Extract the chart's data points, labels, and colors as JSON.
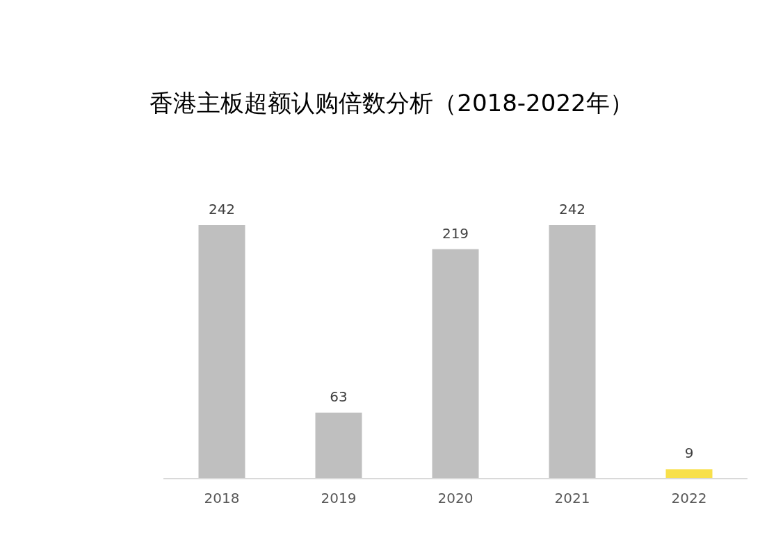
{
  "chart_data": {
    "type": "bar",
    "title": "香港主板超额认购倍数分析（2018-2022年）",
    "categories": [
      "2018",
      "2019",
      "2020",
      "2021",
      "2022"
    ],
    "values": [
      242,
      63,
      219,
      242,
      9
    ],
    "colors": [
      "#bfbfbf",
      "#bfbfbf",
      "#bfbfbf",
      "#bfbfbf",
      "#f8e04b"
    ],
    "data_labels": true
  }
}
